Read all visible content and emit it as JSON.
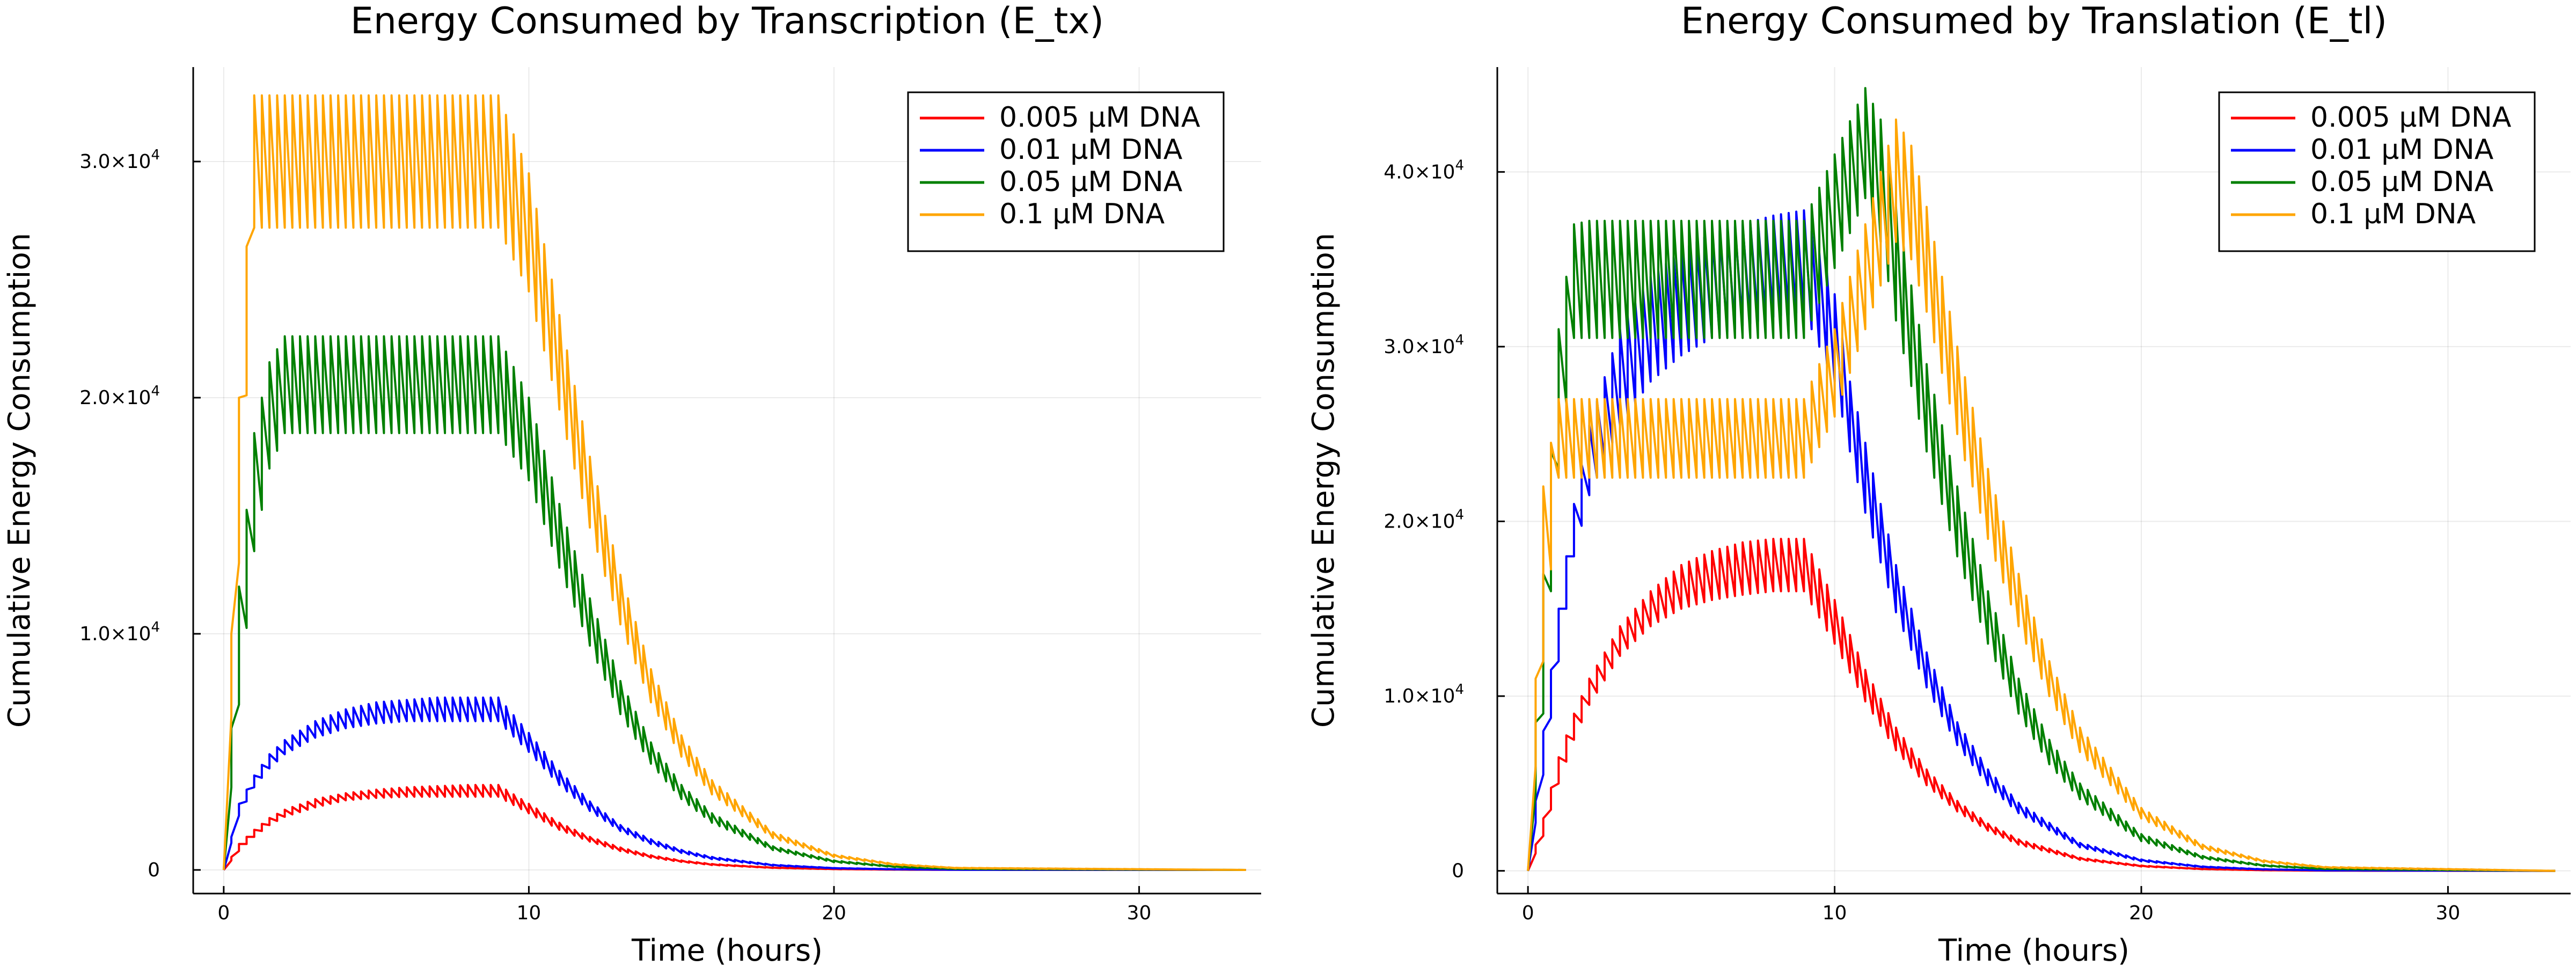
{
  "chart_data": [
    {
      "type": "line",
      "title": "Energy Consumed by Transcription (E_tx)",
      "xlabel": "Time (hours)",
      "ylabel": "Cumulative Energy Consumption",
      "xlim": [
        -1,
        34
      ],
      "ylim": [
        -1000,
        34000
      ],
      "xticks": [
        0,
        10,
        20,
        30
      ],
      "xtick_labels": [
        "0",
        "10",
        "20",
        "30"
      ],
      "yticks": [
        0,
        10000,
        20000,
        30000
      ],
      "ytick_mantissas": [
        "0",
        "1.0×10",
        "2.0×10",
        "3.0×10"
      ],
      "ytick_exponents": [
        "",
        "4",
        "4",
        "4"
      ],
      "grid": true,
      "legend_position": "top-right",
      "dosing_interval_hours": 0.25,
      "series": [
        {
          "name": "0.005 μM DNA",
          "color": "#ff0000",
          "x": [
            0,
            0.5,
            1,
            1.5,
            2,
            3,
            4,
            5,
            6,
            7,
            8,
            9,
            10,
            11,
            12,
            13,
            14,
            15,
            16,
            18,
            20,
            22,
            24,
            33.5
          ],
          "peak": [
            0,
            1100,
            1700,
            2200,
            2550,
            3000,
            3250,
            3400,
            3500,
            3550,
            3600,
            3600,
            2800,
            2000,
            1400,
            950,
            620,
            400,
            250,
            100,
            40,
            15,
            5,
            0
          ],
          "trough": [
            0,
            800,
            1400,
            1900,
            2250,
            2650,
            2950,
            3050,
            3100,
            3100,
            3100,
            3100,
            2400,
            1700,
            1200,
            800,
            520,
            340,
            210,
            85,
            33,
            12,
            4,
            0
          ]
        },
        {
          "name": "0.01 μM DNA",
          "color": "#0000ff",
          "x": [
            0,
            0.5,
            1,
            1.5,
            2,
            3,
            4,
            5,
            6,
            7,
            8,
            9,
            10,
            11,
            12,
            13,
            14,
            15,
            16,
            18,
            20,
            22,
            24,
            33.5
          ],
          "peak": [
            0,
            2800,
            4000,
            4900,
            5500,
            6300,
            6800,
            7100,
            7200,
            7300,
            7300,
            7300,
            5800,
            4200,
            2900,
            1900,
            1300,
            850,
            550,
            220,
            80,
            30,
            10,
            0
          ],
          "trough": [
            0,
            2300,
            3500,
            4300,
            4900,
            5600,
            6000,
            6200,
            6300,
            6300,
            6300,
            6300,
            5000,
            3600,
            2500,
            1650,
            1100,
            720,
            460,
            185,
            70,
            25,
            8,
            0
          ]
        },
        {
          "name": "0.05 μM DNA",
          "color": "#008000",
          "x": [
            0,
            0.5,
            1,
            1.5,
            2,
            3,
            4,
            5,
            6,
            7,
            8,
            9,
            10,
            11,
            12,
            13,
            14,
            15,
            16,
            18,
            20,
            22,
            24,
            33.5
          ],
          "peak": [
            0,
            12000,
            18500,
            21500,
            22600,
            22600,
            22600,
            22600,
            22600,
            22600,
            22600,
            22600,
            20000,
            15500,
            11500,
            8000,
            5400,
            3600,
            2400,
            1000,
            400,
            150,
            50,
            0
          ],
          "trough": [
            0,
            7000,
            13500,
            17000,
            18500,
            18500,
            18500,
            18500,
            18500,
            18500,
            18500,
            18500,
            16500,
            12800,
            9500,
            6600,
            4500,
            3000,
            2000,
            840,
            330,
            120,
            40,
            0
          ]
        },
        {
          "name": "0.1 μM DNA",
          "color": "#ffa500",
          "x": [
            0,
            0.5,
            1,
            1.5,
            2,
            3,
            4,
            5,
            6,
            7,
            8,
            9,
            10,
            11,
            12,
            13,
            14,
            15,
            16,
            18,
            20,
            22,
            24,
            33.5
          ],
          "peak": [
            0,
            20000,
            32800,
            32800,
            32800,
            32800,
            32800,
            32800,
            32800,
            32800,
            32800,
            32800,
            29500,
            23500,
            17500,
            12500,
            8500,
            5700,
            3800,
            1600,
            650,
            250,
            90,
            0
          ],
          "trough": [
            0,
            13000,
            27200,
            27200,
            27200,
            27200,
            27200,
            27200,
            27200,
            27200,
            27200,
            27200,
            24500,
            19500,
            14500,
            10400,
            7100,
            4800,
            3200,
            1350,
            550,
            210,
            75,
            0
          ]
        }
      ]
    },
    {
      "type": "line",
      "title": "Energy Consumed by Translation (E_tl)",
      "xlabel": "Time (hours)",
      "ylabel": "Cumulative Energy Consumption",
      "xlim": [
        -1,
        34
      ],
      "ylim": [
        -1300,
        46000
      ],
      "xticks": [
        0,
        10,
        20,
        30
      ],
      "xtick_labels": [
        "0",
        "10",
        "20",
        "30"
      ],
      "yticks": [
        0,
        10000,
        20000,
        30000,
        40000
      ],
      "ytick_mantissas": [
        "0",
        "1.0×10",
        "2.0×10",
        "3.0×10",
        "4.0×10"
      ],
      "ytick_exponents": [
        "",
        "4",
        "4",
        "4",
        "4"
      ],
      "grid": true,
      "legend_position": "top-right",
      "dosing_interval_hours": 0.25,
      "series": [
        {
          "name": "0.005 μM DNA",
          "color": "#ff0000",
          "x": [
            0,
            0.5,
            1,
            1.5,
            2,
            3,
            4,
            5,
            6,
            7,
            8,
            9,
            10,
            11,
            12,
            13,
            14,
            15,
            16,
            18,
            20,
            22,
            24,
            26,
            33.5
          ],
          "peak": [
            0,
            3000,
            6500,
            9000,
            11000,
            14000,
            16000,
            17500,
            18300,
            18800,
            19000,
            19000,
            15500,
            11500,
            8200,
            5800,
            4000,
            2700,
            1800,
            750,
            300,
            110,
            40,
            10,
            0
          ],
          "trough": [
            0,
            2000,
            5000,
            7500,
            9500,
            12300,
            14000,
            15000,
            15500,
            15800,
            16000,
            16000,
            13000,
            9700,
            6900,
            4900,
            3400,
            2300,
            1500,
            630,
            250,
            95,
            34,
            8,
            0
          ]
        },
        {
          "name": "0.01 μM DNA",
          "color": "#0000ff",
          "x": [
            0,
            0.5,
            1,
            1.5,
            2,
            3,
            4,
            5,
            6,
            7,
            8,
            9,
            10,
            10.5,
            11,
            12,
            13,
            14,
            15,
            16,
            18,
            20,
            22,
            24,
            26,
            33.5
          ],
          "peak": [
            0,
            8000,
            15000,
            21000,
            25500,
            31000,
            34000,
            35500,
            36500,
            37000,
            37500,
            37800,
            33000,
            28000,
            24500,
            17500,
            12500,
            8500,
            5800,
            3900,
            1600,
            650,
            250,
            90,
            30,
            0
          ],
          "trough": [
            0,
            5500,
            12000,
            18000,
            21500,
            25500,
            28000,
            29500,
            30500,
            31200,
            31700,
            32000,
            28000,
            24000,
            20500,
            14800,
            10500,
            7200,
            4900,
            3300,
            1350,
            550,
            210,
            76,
            25,
            0
          ]
        },
        {
          "name": "0.05 μM DNA",
          "color": "#008000",
          "x": [
            0,
            0.5,
            1,
            1.5,
            2,
            3,
            4,
            5,
            6,
            7,
            8,
            9,
            10,
            11,
            11.5,
            12,
            13,
            14,
            15,
            16,
            17,
            18,
            20,
            22,
            24,
            26,
            33.5
          ],
          "peak": [
            0,
            17000,
            31000,
            37000,
            37200,
            37200,
            37200,
            37200,
            37200,
            37200,
            37200,
            37200,
            41000,
            44800,
            43000,
            38000,
            29000,
            22000,
            16000,
            11000,
            7500,
            5000,
            2100,
            850,
            330,
            120,
            0
          ],
          "trough": [
            0,
            9000,
            23000,
            30500,
            30500,
            30500,
            30500,
            30500,
            30500,
            30500,
            30500,
            30500,
            34500,
            38500,
            36000,
            31500,
            24000,
            18000,
            13000,
            9000,
            6100,
            4100,
            1700,
            700,
            270,
            100,
            0
          ]
        },
        {
          "name": "0.1 μM DNA",
          "color": "#ffa500",
          "x": [
            0,
            0.5,
            1,
            1.5,
            2,
            3,
            4,
            5,
            6,
            7,
            8,
            9,
            10,
            11,
            12,
            12.5,
            13,
            14,
            15,
            16,
            17,
            18,
            20,
            22,
            24,
            26,
            33.5
          ],
          "peak": [
            0,
            22000,
            27000,
            27000,
            27000,
            27000,
            27000,
            27000,
            27000,
            27000,
            27000,
            27000,
            31000,
            37000,
            43000,
            41500,
            38000,
            30000,
            23000,
            17000,
            12000,
            8200,
            3600,
            1500,
            600,
            220,
            0
          ],
          "trough": [
            0,
            12000,
            22500,
            22500,
            22500,
            22500,
            22500,
            22500,
            22500,
            22500,
            22500,
            22500,
            26000,
            31000,
            36000,
            35000,
            32000,
            25000,
            19000,
            14000,
            10000,
            6800,
            3000,
            1250,
            500,
            180,
            0
          ]
        }
      ]
    }
  ]
}
